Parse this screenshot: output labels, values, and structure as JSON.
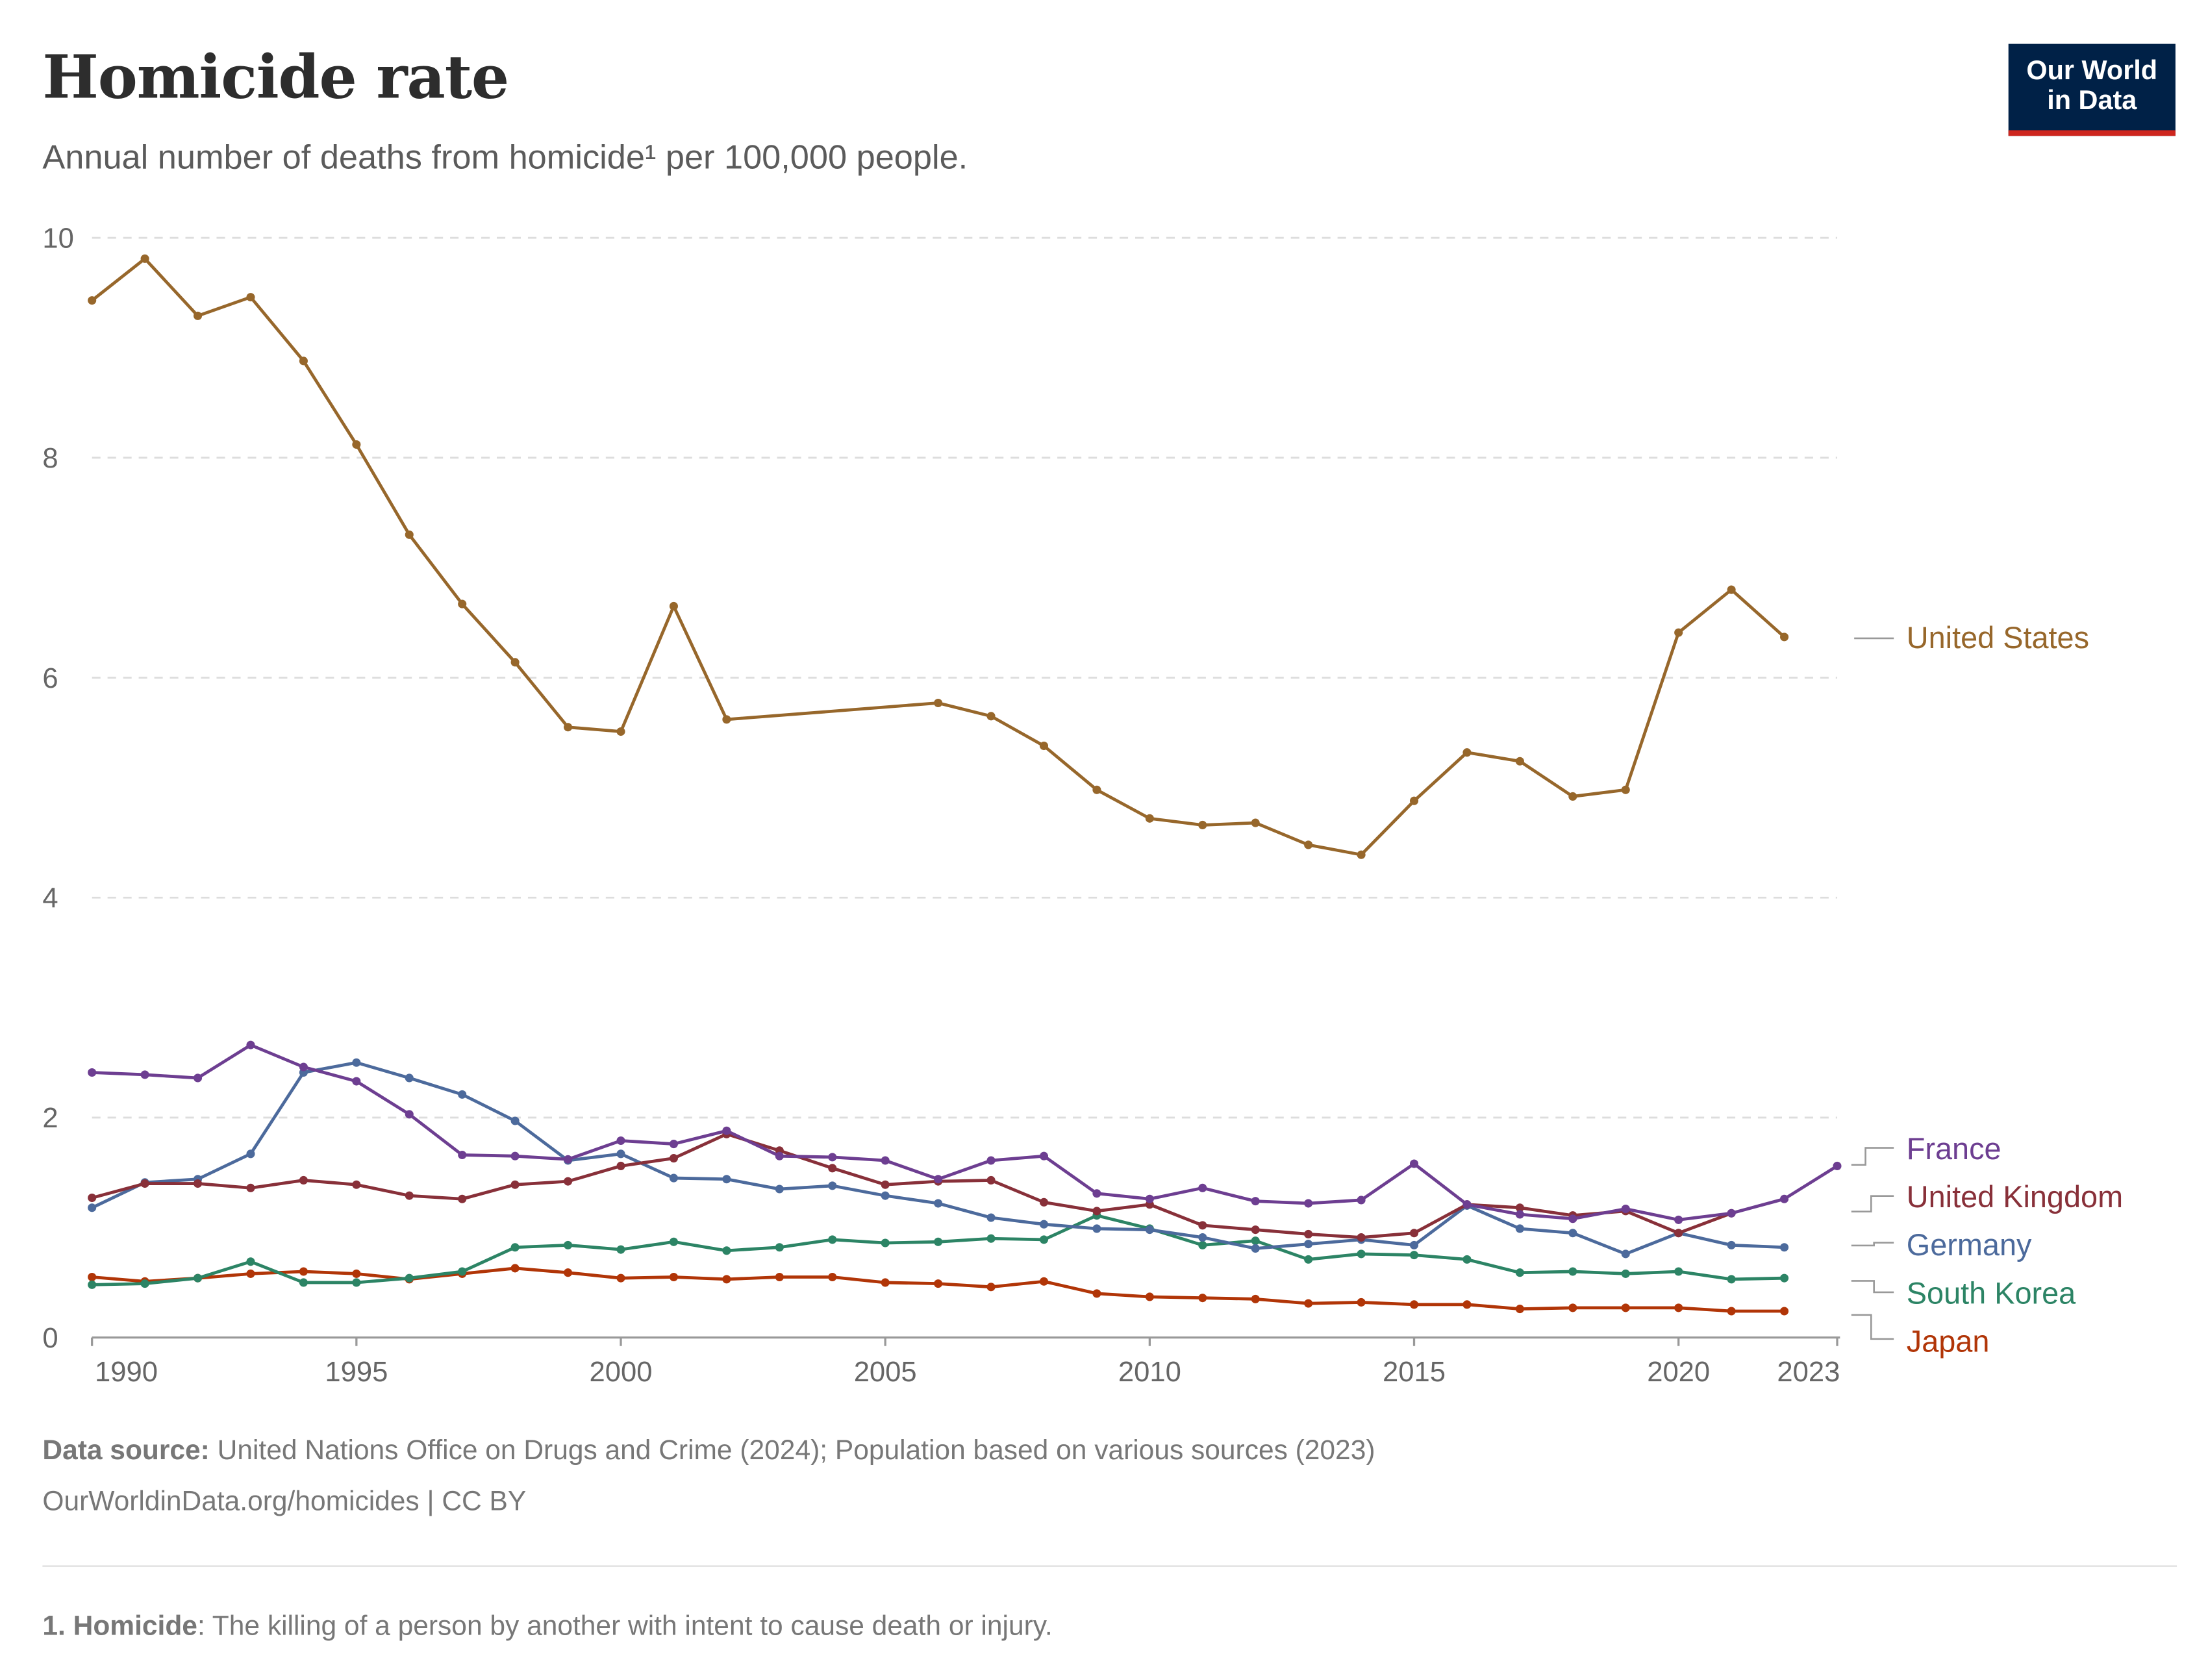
{
  "header": {
    "title": "Homicide rate",
    "subtitle": "Annual number of deaths from homicide¹ per 100,000 people.",
    "logo_line1": "Our World",
    "logo_line2": "in Data"
  },
  "footer": {
    "source_label": "Data source:",
    "source_text": "United Nations Office on Drugs and Crime (2024); Population based on various sources (2023)",
    "url_text": "OurWorldinData.org/homicides | CC BY",
    "note_label": "1. Homicide",
    "note_text": ": The killing of a person by another with intent to cause death or injury."
  },
  "chart_data": {
    "type": "line",
    "title": "Homicide rate",
    "xlim": [
      1990,
      2023
    ],
    "ylim": [
      0,
      10
    ],
    "x_ticks": [
      "1990",
      "1995",
      "2000",
      "2005",
      "2010",
      "2015",
      "2020",
      "2023"
    ],
    "y_ticks": [
      "0",
      "2",
      "4",
      "6",
      "8",
      "10"
    ],
    "grid": "horizontal dashed",
    "legend": "right, inline labels",
    "series": [
      {
        "name": "United States",
        "color": "#97672b",
        "start": 1990,
        "values": [
          9.43,
          9.81,
          9.29,
          9.46,
          8.88,
          8.12,
          7.3,
          6.67,
          6.14,
          5.55,
          5.51,
          6.65,
          5.62,
          null,
          null,
          null,
          5.77,
          5.65,
          5.38,
          4.98,
          4.72,
          4.66,
          4.68,
          4.48,
          4.39,
          4.88,
          5.32,
          5.24,
          4.92,
          4.98,
          6.41,
          6.8,
          6.37
        ]
      },
      {
        "name": "France",
        "color": "#6d3e91",
        "start": 1990,
        "values": [
          2.41,
          2.39,
          2.36,
          2.66,
          2.46,
          2.33,
          2.03,
          1.66,
          1.65,
          1.62,
          1.79,
          1.76,
          1.88,
          1.65,
          1.64,
          1.61,
          1.44,
          1.61,
          1.65,
          1.31,
          1.26,
          1.36,
          1.24,
          1.22,
          1.25,
          1.58,
          1.21,
          1.12,
          1.08,
          1.17,
          1.07,
          1.13,
          1.26,
          1.56
        ]
      },
      {
        "name": "United Kingdom",
        "color": "#883039",
        "start": 1990,
        "values": [
          1.27,
          1.4,
          1.4,
          1.36,
          1.43,
          1.39,
          1.29,
          1.26,
          1.39,
          1.42,
          1.56,
          1.63,
          1.85,
          1.7,
          1.54,
          1.39,
          1.42,
          1.43,
          1.23,
          1.15,
          1.21,
          1.02,
          0.98,
          0.94,
          0.91,
          0.95,
          1.21,
          1.18,
          1.11,
          1.15,
          0.95,
          1.13
        ]
      },
      {
        "name": "Germany",
        "color": "#4c6a9c",
        "start": 1990,
        "values": [
          1.18,
          1.41,
          1.44,
          1.67,
          2.41,
          2.5,
          2.36,
          2.21,
          1.97,
          1.61,
          1.67,
          1.45,
          1.44,
          1.35,
          1.38,
          1.29,
          1.22,
          1.09,
          1.03,
          0.99,
          0.98,
          0.91,
          0.81,
          0.85,
          0.89,
          0.84,
          1.2,
          0.99,
          0.95,
          0.76,
          0.95,
          0.84,
          0.82
        ]
      },
      {
        "name": "South Korea",
        "color": "#2c8465",
        "start": 1990,
        "values": [
          0.48,
          0.49,
          0.54,
          0.69,
          0.5,
          0.5,
          0.54,
          0.6,
          0.82,
          0.84,
          0.8,
          0.87,
          0.79,
          0.82,
          0.89,
          0.86,
          0.87,
          0.9,
          0.89,
          1.11,
          0.99,
          0.84,
          0.88,
          0.71,
          0.76,
          0.75,
          0.71,
          0.59,
          0.6,
          0.58,
          0.6,
          0.53,
          0.54
        ]
      },
      {
        "name": "Japan",
        "color": "#b13507",
        "start": 1990,
        "values": [
          0.55,
          0.51,
          0.54,
          0.58,
          0.6,
          0.58,
          0.53,
          0.58,
          0.63,
          0.59,
          0.54,
          0.55,
          0.53,
          0.55,
          0.55,
          0.5,
          0.49,
          0.46,
          0.51,
          0.4,
          0.37,
          0.36,
          0.35,
          0.31,
          0.32,
          0.3,
          0.3,
          0.26,
          0.27,
          0.27,
          0.27,
          0.24,
          0.24
        ]
      }
    ]
  }
}
